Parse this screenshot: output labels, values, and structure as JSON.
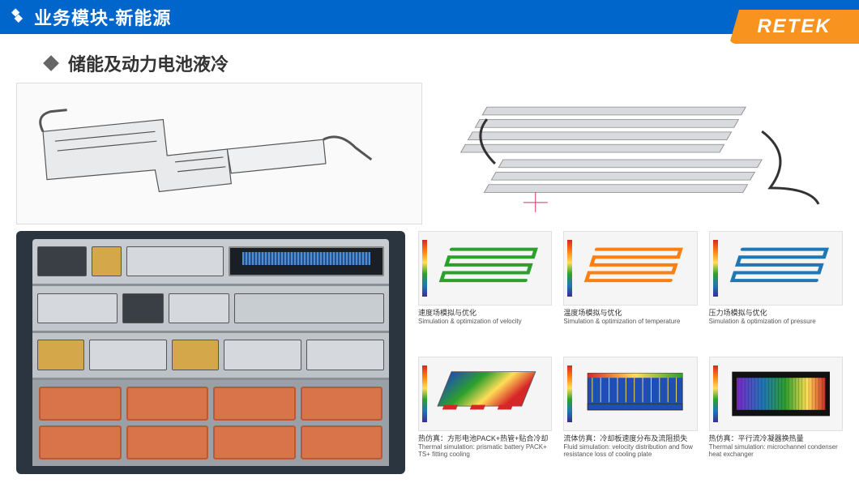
{
  "header": {
    "title": "业务模块-新能源",
    "logo_text": "RETEK",
    "header_bg": "#0066cc",
    "logo_bg": "#f7931e"
  },
  "section": {
    "title": "储能及动力电池液冷"
  },
  "sim_items": [
    {
      "cn": "速度场模拟与优化",
      "en": "Simulation & optimization of velocity",
      "thumb_type": "serpentine",
      "primary_color": "#2ca02c"
    },
    {
      "cn": "温度场模拟与优化",
      "en": "Simulation & optimization of temperature",
      "thumb_type": "serpentine",
      "primary_color": "#ff7f0e"
    },
    {
      "cn": "压力场模拟与优化",
      "en": "Simulation & optimization of pressure",
      "thumb_type": "serpentine",
      "primary_color": "#1f77b4"
    },
    {
      "cn": "热仿真：方形电池PACK+热管+贴合冷却",
      "en": "Thermal simulation: prismatic battery PACK+ TS+ fitting cooling",
      "thumb_type": "gradient_plate",
      "primary_color": "#ff4500"
    },
    {
      "cn": "流体仿真：冷却板速度分布及流阻损失",
      "en": "Fluid simulation: velocity distribution and flow resistance loss of cooling plate",
      "thumb_type": "flow_plate",
      "primary_color": "#1f77b4"
    },
    {
      "cn": "热仿真：平行流冷凝器换热量",
      "en": "Thermal simulation: microchannel condenser heat exchanger",
      "thumb_type": "condenser",
      "primary_color": "#2ca02c"
    }
  ],
  "colors": {
    "text_primary": "#333333",
    "text_secondary": "#555555",
    "border": "#e0e0e0",
    "rainbow": [
      "#d62728",
      "#ff7f0e",
      "#ffdd57",
      "#2ca02c",
      "#1f77b4",
      "#3b2e8c"
    ]
  }
}
